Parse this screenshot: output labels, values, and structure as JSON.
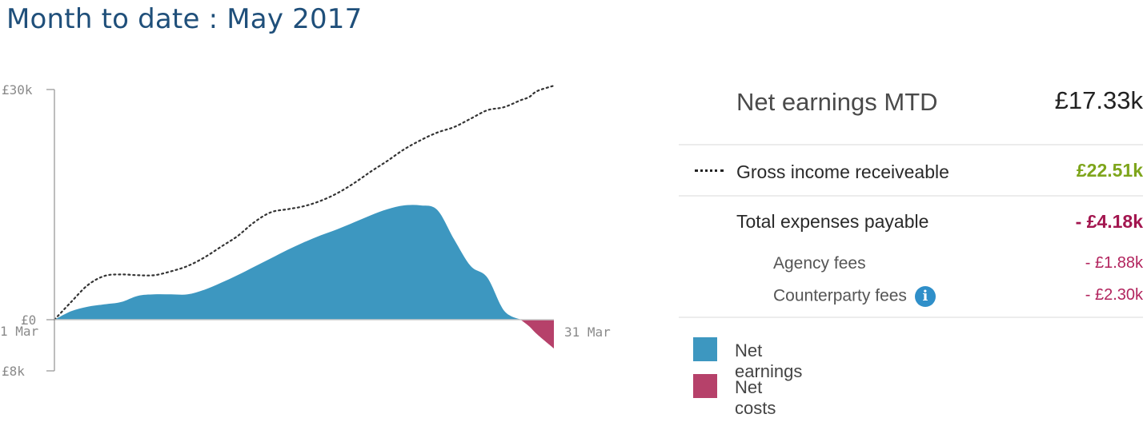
{
  "title": "Month to date : May 2017",
  "colors": {
    "net_earnings": "#3d97c0",
    "net_costs": "#b6416a",
    "gross_line": "#333333",
    "axis": "#9a9a9a",
    "positive": "#7ea51c",
    "negative": "#a3164f"
  },
  "summary": {
    "net_earnings_label": "Net earnings MTD",
    "net_earnings_value": "£17.33k",
    "gross_label": "Gross income receiveable",
    "gross_value": "£22.51k",
    "total_expenses_label": "Total expenses payable",
    "total_expenses_value": "- £4.18k",
    "agency_label": "Agency fees",
    "agency_value": "- £1.88k",
    "counterparty_label": "Counterparty fees",
    "counterparty_value": "- £2.30k",
    "info_icon": "info-icon",
    "info_glyph": "i"
  },
  "legend": [
    {
      "label": "Net earnings",
      "color": "#3d97c0"
    },
    {
      "label": "Net costs",
      "color": "#b6416a"
    }
  ],
  "chart_data": {
    "type": "area",
    "xlabel": "",
    "ylabel": "",
    "x_tick_labels": [
      "1 Mar",
      "31 Mar"
    ],
    "y_tick_labels": [
      "£30k",
      "£0",
      "£8k"
    ],
    "x_range": [
      1,
      31
    ],
    "y_range": [
      -8000,
      30000
    ],
    "x": [
      1,
      2,
      3,
      4,
      5,
      6,
      7,
      8,
      9,
      10,
      11,
      12,
      13,
      14,
      15,
      16,
      17,
      18,
      19,
      20,
      21,
      22,
      23,
      24,
      25,
      26,
      27,
      28,
      29,
      29.5,
      30,
      31
    ],
    "series": [
      {
        "name": "Net earnings",
        "fill": "positive",
        "values": [
          0,
          1100,
          1700,
          2000,
          2300,
          3100,
          3300,
          3300,
          3300,
          3900,
          4800,
          5800,
          6900,
          8000,
          9100,
          10100,
          11000,
          11800,
          12700,
          13600,
          14400,
          14900,
          14900,
          14300,
          10500,
          7000,
          5500,
          1200,
          0,
          -1000,
          -2300,
          -4500
        ]
      },
      {
        "name": "Gross income receiveable",
        "style": "dotted",
        "values": [
          0,
          2300,
          4500,
          5700,
          5900,
          5800,
          5800,
          6300,
          7000,
          8100,
          9500,
          10900,
          12700,
          14000,
          14400,
          14800,
          15500,
          16500,
          17800,
          19300,
          20700,
          22200,
          23400,
          24400,
          25100,
          26200,
          27300,
          27700,
          28600,
          29000,
          29800,
          30500
        ]
      }
    ],
    "grid": false,
    "legend_position": "right"
  }
}
